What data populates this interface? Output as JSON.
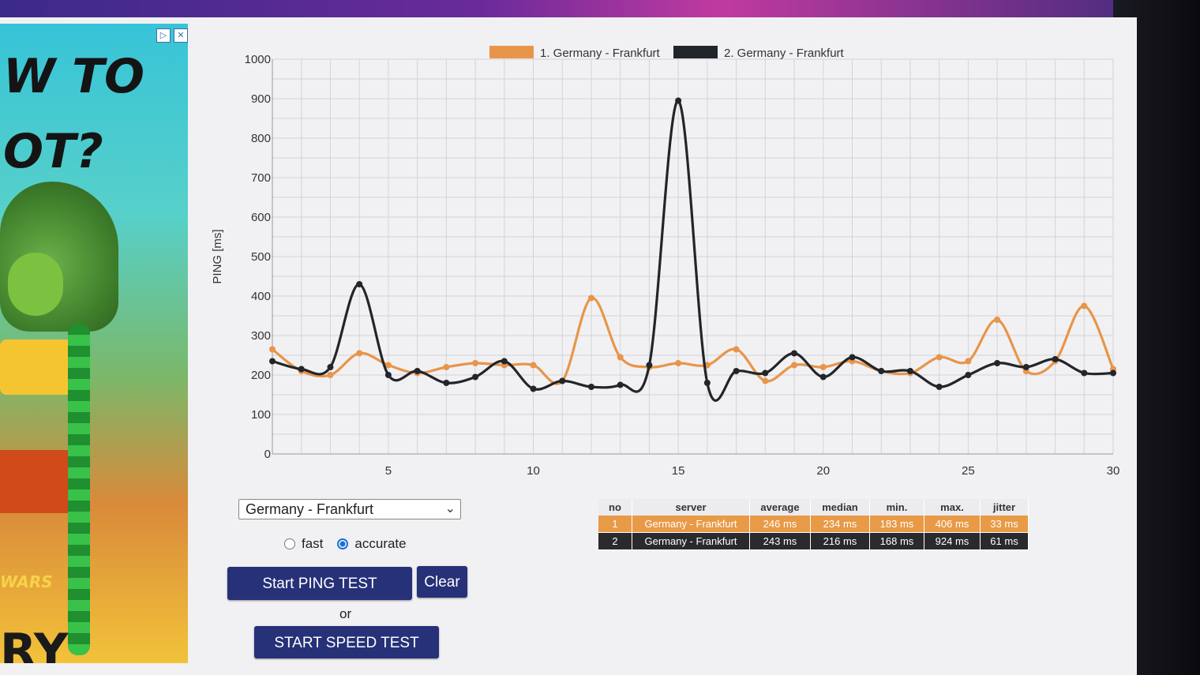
{
  "ad": {
    "headline": "W TO\nOT?",
    "brand": "WARS",
    "bottom_text": "RY",
    "controls": {
      "play_icon": "▷",
      "close_icon": "✕"
    }
  },
  "chart_data": {
    "type": "line",
    "ylabel": "PING [ms]",
    "xlabel": "",
    "xlim": [
      1,
      30
    ],
    "ylim": [
      0,
      1000
    ],
    "y_ticks": [
      0,
      100,
      200,
      300,
      400,
      500,
      600,
      700,
      800,
      900,
      1000
    ],
    "x_ticks": [
      5,
      10,
      15,
      20,
      25,
      30
    ],
    "grid": true,
    "legend_position": "top",
    "x": [
      1,
      2,
      3,
      4,
      5,
      6,
      7,
      8,
      9,
      10,
      11,
      12,
      13,
      14,
      15,
      16,
      17,
      18,
      19,
      20,
      21,
      22,
      23,
      24,
      25,
      26,
      27,
      28,
      29,
      30
    ],
    "series": [
      {
        "name": "1. Germany - Frankfurt",
        "color": "#e8954a",
        "values": [
          265,
          210,
          200,
          255,
          225,
          205,
          220,
          230,
          225,
          225,
          185,
          395,
          245,
          220,
          230,
          225,
          265,
          185,
          225,
          220,
          235,
          210,
          205,
          245,
          235,
          340,
          210,
          235,
          375,
          215
        ]
      },
      {
        "name": "2. Germany - Frankfurt",
        "color": "#22252a",
        "values": [
          235,
          215,
          220,
          430,
          200,
          210,
          180,
          195,
          235,
          165,
          185,
          170,
          175,
          225,
          895,
          180,
          210,
          205,
          255,
          195,
          245,
          210,
          210,
          170,
          200,
          230,
          220,
          240,
          205,
          205
        ]
      }
    ]
  },
  "controls": {
    "server_selected": "Germany - Frankfurt",
    "mode_options": [
      "fast",
      "accurate"
    ],
    "mode_selected": "accurate",
    "start_ping_label": "Start PING TEST",
    "clear_label": "Clear",
    "or_label": "or",
    "start_speed_label": "START SPEED TEST"
  },
  "results": {
    "headers": [
      "no",
      "server",
      "average",
      "median",
      "min.",
      "max.",
      "jitter"
    ],
    "rows": [
      [
        "1",
        "Germany - Frankfurt",
        "246 ms",
        "234 ms",
        "183 ms",
        "406 ms",
        "33 ms"
      ],
      [
        "2",
        "Germany - Frankfurt",
        "243 ms",
        "216 ms",
        "168 ms",
        "924 ms",
        "61 ms"
      ]
    ]
  }
}
